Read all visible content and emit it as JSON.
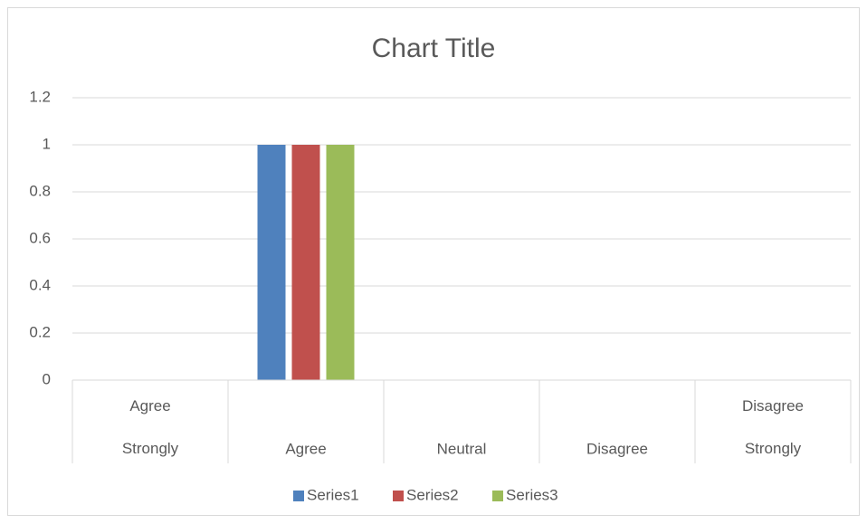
{
  "chart_data": {
    "type": "bar",
    "title": "Chart Title",
    "categories": [
      "Agree Strongly",
      "Agree",
      "Neutral",
      "Disagree",
      "Disagree Strongly"
    ],
    "series": [
      {
        "name": "Series1",
        "color": "#4f81bd",
        "values": [
          0,
          1,
          0,
          0,
          0
        ]
      },
      {
        "name": "Series2",
        "color": "#c0504d",
        "values": [
          0,
          1,
          0,
          0,
          0
        ]
      },
      {
        "name": "Series3",
        "color": "#9bbb59",
        "values": [
          0,
          1,
          0,
          0,
          0
        ]
      }
    ],
    "ylim": [
      0,
      1.2
    ],
    "yticks": [
      0,
      0.2,
      0.4,
      0.6,
      0.8,
      1,
      1.2
    ],
    "grid": true,
    "legend": "bottom"
  }
}
